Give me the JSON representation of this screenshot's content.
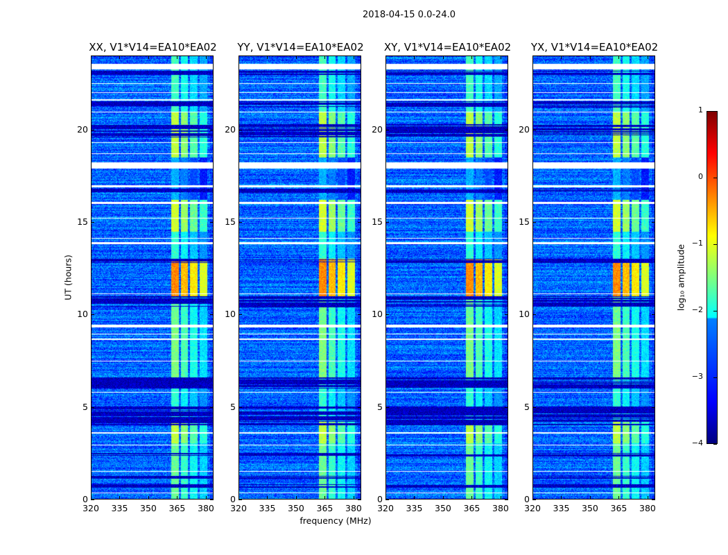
{
  "figure": {
    "suptitle": "2018-04-15 0.0-24.0",
    "xlabel": "frequency (MHz)",
    "ylabel": "UT (hours)"
  },
  "chart_data": {
    "type": "heatmap",
    "title": "2018-04-15 0.0-24.0",
    "panels": [
      {
        "title": "XX, V1*V14=EA10*EA02",
        "seed": 11
      },
      {
        "title": "YY, V1*V14=EA10*EA02",
        "seed": 23
      },
      {
        "title": "XY, V1*V14=EA10*EA02",
        "seed": 37
      },
      {
        "title": "YX, V1*V14=EA10*EA02",
        "seed": 51
      }
    ],
    "xlabel": "frequency (MHz)",
    "ylabel": "UT (hours)",
    "xlim": [
      320,
      384
    ],
    "ylim": [
      0,
      24
    ],
    "xticks": [
      320,
      335,
      350,
      365,
      380
    ],
    "yticks": [
      0,
      5,
      10,
      15,
      20
    ],
    "colorbar": {
      "label": "log₁₀ amplitude",
      "range": [
        -4,
        1
      ],
      "ticks": [
        1,
        0,
        -1,
        -2,
        -3,
        -4
      ],
      "tick_labels": [
        "1",
        "0",
        "−1",
        "−2",
        "−3",
        "−4"
      ],
      "colormap": "jet"
    },
    "background_level": -2.9,
    "bright_channels_mhz": [
      [
        362,
        366
      ],
      [
        367,
        371
      ],
      [
        372,
        376
      ],
      [
        377,
        381
      ]
    ],
    "bright_activity": [
      [
        0,
        3,
        -1.6
      ],
      [
        3,
        4.2,
        -1.2
      ],
      [
        4.2,
        6.5,
        -1.9
      ],
      [
        6.5,
        9.5,
        -1.5
      ],
      [
        9.5,
        11,
        -1.6
      ],
      [
        11,
        13,
        -0.3
      ],
      [
        13,
        14.5,
        -1.9
      ],
      [
        14.5,
        16.2,
        -1.1
      ],
      [
        16.2,
        18.5,
        -2.5
      ],
      [
        18.5,
        21,
        -1.2
      ],
      [
        21,
        24,
        -1.8
      ]
    ],
    "flagged_white_hours": [
      [
        23.3,
        23.6
      ],
      [
        17.9,
        18.25
      ],
      [
        0.3,
        0.35
      ],
      [
        1.45,
        1.5
      ],
      [
        2.9,
        2.95
      ],
      [
        3.55,
        3.6
      ],
      [
        5.75,
        5.8
      ],
      [
        7.45,
        7.5
      ],
      [
        8.6,
        8.7
      ],
      [
        8.9,
        8.95
      ],
      [
        9.3,
        9.45
      ],
      [
        11.1,
        11.15
      ],
      [
        13.8,
        13.9
      ],
      [
        14.1,
        14.15
      ],
      [
        15.2,
        15.25
      ],
      [
        16.0,
        16.1
      ],
      [
        16.9,
        17.0
      ],
      [
        18.7,
        18.75
      ],
      [
        19.3,
        19.35
      ],
      [
        20.95,
        21.0
      ],
      [
        21.6,
        21.65
      ],
      [
        22.0,
        22.05
      ],
      [
        22.5,
        22.55
      ]
    ],
    "flagged_black_hours": [
      [
        0.6,
        0.8
      ],
      [
        1.1,
        1.25
      ],
      [
        2.3,
        2.5
      ],
      [
        4.0,
        5.0
      ],
      [
        6.0,
        6.6
      ],
      [
        10.4,
        11.0
      ],
      [
        12.8,
        13.0
      ],
      [
        16.6,
        16.8
      ],
      [
        19.6,
        20.3
      ],
      [
        21.2,
        21.55
      ],
      [
        23.0,
        23.2
      ]
    ]
  }
}
